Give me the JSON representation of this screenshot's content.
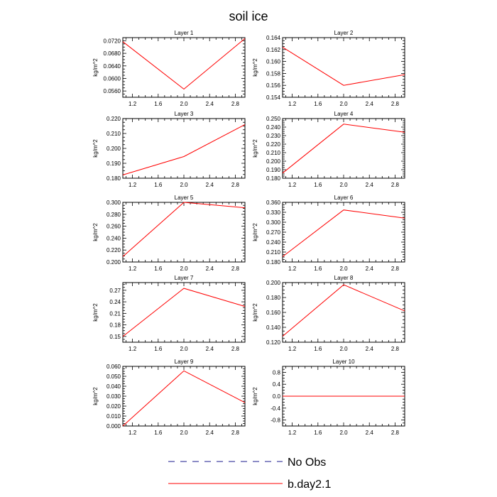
{
  "title": "soil ice",
  "legend": [
    {
      "label": "No Obs",
      "color": "#1a1a8c",
      "style": "dashed"
    },
    {
      "label": "b.day2.1",
      "color": "#ff0000",
      "style": "solid"
    }
  ],
  "chart_data": [
    {
      "type": "line",
      "title": "Layer 1",
      "ylabel": "kg/m^2",
      "x": [
        1.05,
        2.0,
        2.95
      ],
      "y": [
        0.0717,
        0.0566,
        0.0727
      ],
      "xlim": [
        1.05,
        2.95
      ],
      "ylim": [
        0.054,
        0.073
      ],
      "xticks": [
        "1.2",
        "1.6",
        "2.0",
        "2.4",
        "2.8"
      ],
      "yticks": [
        "0.0560",
        "0.0600",
        "0.0640",
        "0.0680",
        "0.0720"
      ],
      "grid": false,
      "series_color": "#ff0000"
    },
    {
      "type": "line",
      "title": "Layer 2",
      "ylabel": "kg/m^2",
      "x": [
        1.05,
        2.0,
        2.95
      ],
      "y": [
        0.1624,
        0.156,
        0.1578
      ],
      "xlim": [
        1.05,
        2.95
      ],
      "ylim": [
        0.154,
        0.164
      ],
      "xticks": [
        "1.2",
        "1.6",
        "2.0",
        "2.4",
        "2.8"
      ],
      "yticks": [
        "0.154",
        "0.156",
        "0.158",
        "0.160",
        "0.162",
        "0.164"
      ],
      "grid": false,
      "series_color": "#ff0000"
    },
    {
      "type": "line",
      "title": "Layer 3",
      "ylabel": "kg/m^2",
      "x": [
        1.05,
        2.0,
        2.95
      ],
      "y": [
        0.1822,
        0.1945,
        0.216
      ],
      "xlim": [
        1.05,
        2.95
      ],
      "ylim": [
        0.18,
        0.22
      ],
      "xticks": [
        "1.2",
        "1.6",
        "2.0",
        "2.4",
        "2.8"
      ],
      "yticks": [
        "0.180",
        "0.190",
        "0.200",
        "0.210",
        "0.220"
      ],
      "grid": false,
      "series_color": "#ff0000"
    },
    {
      "type": "line",
      "title": "Layer 4",
      "ylabel": "kg/m^2",
      "x": [
        1.05,
        2.0,
        2.95
      ],
      "y": [
        0.186,
        0.2435,
        0.234
      ],
      "xlim": [
        1.05,
        2.95
      ],
      "ylim": [
        0.18,
        0.25
      ],
      "xticks": [
        "1.2",
        "1.6",
        "2.0",
        "2.4",
        "2.8"
      ],
      "yticks": [
        "0.180",
        "0.190",
        "0.200",
        "0.210",
        "0.220",
        "0.230",
        "0.240",
        "0.250"
      ],
      "grid": false,
      "series_color": "#ff0000"
    },
    {
      "type": "line",
      "title": "Layer 5",
      "ylabel": "kg/m^2",
      "x": [
        1.05,
        2.0,
        2.95
      ],
      "y": [
        0.209,
        0.3,
        0.291
      ],
      "xlim": [
        1.05,
        2.95
      ],
      "ylim": [
        0.2,
        0.3
      ],
      "xticks": [
        "1.2",
        "1.6",
        "2.0",
        "2.4",
        "2.8"
      ],
      "yticks": [
        "0.200",
        "0.220",
        "0.240",
        "0.260",
        "0.280",
        "0.300"
      ],
      "grid": false,
      "series_color": "#ff0000"
    },
    {
      "type": "line",
      "title": "Layer 6",
      "ylabel": "kg/m^2",
      "x": [
        1.05,
        2.0,
        2.95
      ],
      "y": [
        0.196,
        0.337,
        0.3125
      ],
      "xlim": [
        1.05,
        2.95
      ],
      "ylim": [
        0.18,
        0.36
      ],
      "xticks": [
        "1.2",
        "1.6",
        "2.0",
        "2.4",
        "2.8"
      ],
      "yticks": [
        "0.180",
        "0.210",
        "0.240",
        "0.270",
        "0.300",
        "0.330",
        "0.360"
      ],
      "grid": false,
      "series_color": "#ff0000"
    },
    {
      "type": "line",
      "title": "Layer 7",
      "ylabel": "kg/m^2",
      "x": [
        1.05,
        2.0,
        2.95
      ],
      "y": [
        0.15,
        0.275,
        0.228
      ],
      "xlim": [
        1.05,
        2.95
      ],
      "ylim": [
        0.135,
        0.29
      ],
      "xticks": [
        "1.2",
        "1.6",
        "2.0",
        "2.4",
        "2.8"
      ],
      "yticks": [
        "0.15",
        "0.18",
        "0.21",
        "0.24",
        "0.27"
      ],
      "grid": false,
      "series_color": "#ff0000"
    },
    {
      "type": "line",
      "title": "Layer 8",
      "ylabel": "kg/m^2",
      "x": [
        1.05,
        2.0,
        2.95
      ],
      "y": [
        0.128,
        0.197,
        0.162
      ],
      "xlim": [
        1.05,
        2.95
      ],
      "ylim": [
        0.12,
        0.2
      ],
      "xticks": [
        "1.2",
        "1.6",
        "2.0",
        "2.4",
        "2.8"
      ],
      "yticks": [
        "0.120",
        "0.140",
        "0.160",
        "0.180",
        "0.200"
      ],
      "grid": false,
      "series_color": "#ff0000"
    },
    {
      "type": "line",
      "title": "Layer 9",
      "ylabel": "kg/m^2",
      "x": [
        1.05,
        2.0,
        2.95
      ],
      "y": [
        0.0,
        0.0555,
        0.0235
      ],
      "xlim": [
        1.05,
        2.95
      ],
      "ylim": [
        0.0,
        0.06
      ],
      "xticks": [
        "1.2",
        "1.6",
        "2.0",
        "2.4",
        "2.8"
      ],
      "yticks": [
        "0.000",
        "0.010",
        "0.020",
        "0.030",
        "0.040",
        "0.050",
        "0.060"
      ],
      "grid": false,
      "series_color": "#ff0000"
    },
    {
      "type": "line",
      "title": "Layer 10",
      "ylabel": "kg/m^2",
      "x": [
        1.05,
        2.0,
        2.95
      ],
      "y": [
        0.0,
        0.0,
        0.0
      ],
      "xlim": [
        1.05,
        2.95
      ],
      "ylim": [
        -1.0,
        1.0
      ],
      "xticks": [
        "1.2",
        "1.6",
        "2.0",
        "2.4",
        "2.8"
      ],
      "yticks": [
        "-0.8",
        "-0.4",
        "0.0",
        "0.4",
        "0.8"
      ],
      "grid": false,
      "series_color": "#ff0000"
    }
  ]
}
